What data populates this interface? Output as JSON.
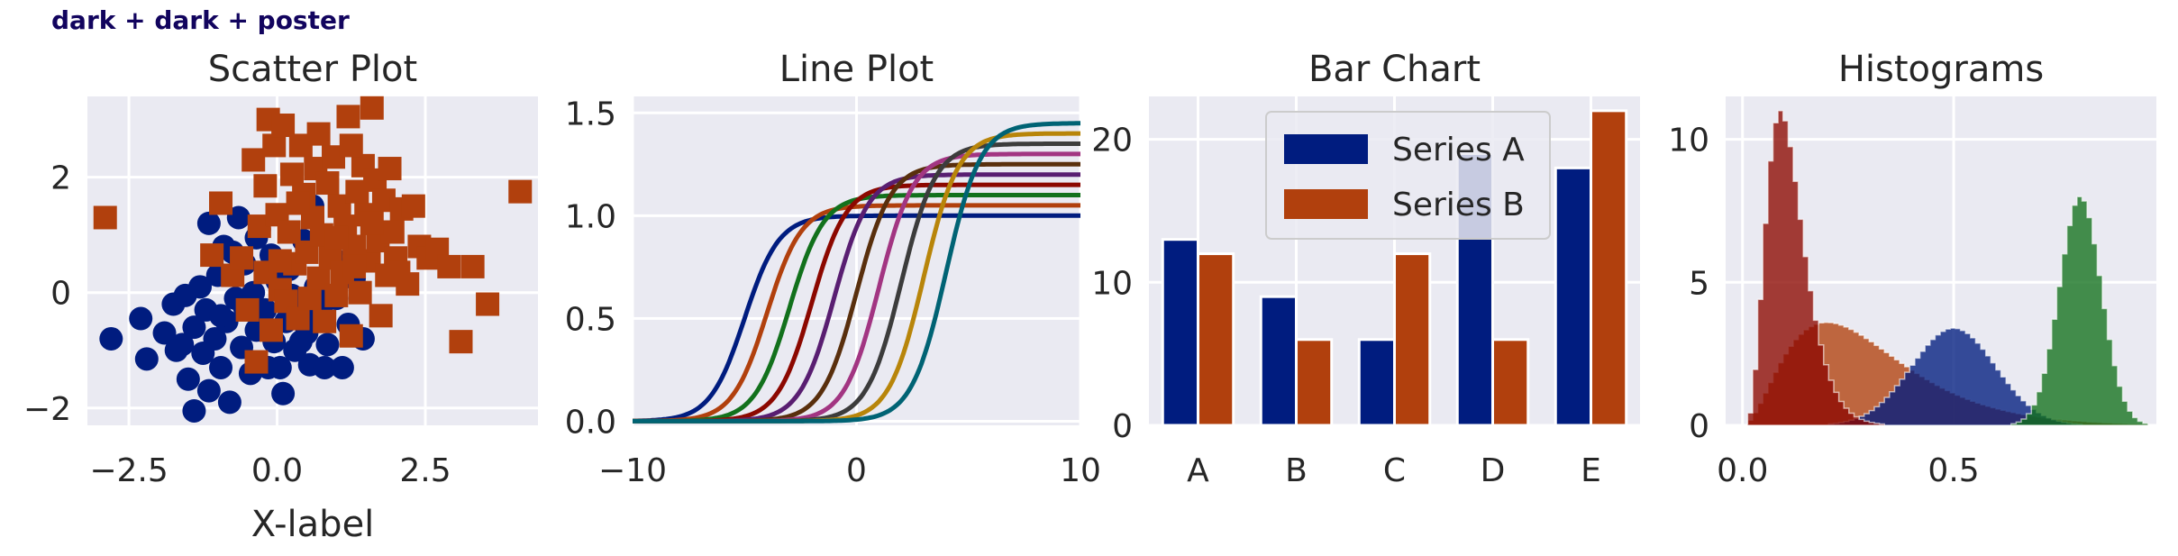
{
  "figure": {
    "suptitle": "dark + dark + poster"
  },
  "colors": {
    "axes_bg": "#eaeaf2",
    "grid": "#ffffff",
    "text": "#262626",
    "dark_palette": [
      "#001c7f",
      "#b1400d",
      "#12711c",
      "#8c0800",
      "#591e71",
      "#592f0d",
      "#a23582",
      "#3c3c3c",
      "#b8850a",
      "#006374"
    ]
  },
  "chart_data": [
    {
      "type": "scatter",
      "title": "Scatter Plot",
      "xlabel": "X-label",
      "ylabel": "",
      "xlim": [
        -3.2,
        4.4
      ],
      "ylim": [
        -2.3,
        3.4
      ],
      "xticks": [
        -2.5,
        0.0,
        2.5
      ],
      "xtick_labels": [
        "−2.5",
        "0.0",
        "2.5"
      ],
      "yticks": [
        -2,
        0,
        2
      ],
      "ytick_labels": [
        "−2",
        "0",
        "2"
      ],
      "series": [
        {
          "marker": "circle",
          "color": "#001c7f",
          "points": [
            [
              -2.8,
              -0.8
            ],
            [
              -2.2,
              -1.15
            ],
            [
              -2.3,
              -0.45
            ],
            [
              -1.9,
              -0.7
            ],
            [
              -1.75,
              -0.2
            ],
            [
              -1.6,
              -0.9
            ],
            [
              -1.55,
              -0.05
            ],
            [
              -1.5,
              -1.5
            ],
            [
              -1.4,
              -0.6
            ],
            [
              -1.4,
              -2.05
            ],
            [
              -1.3,
              0.1
            ],
            [
              -1.25,
              -1.05
            ],
            [
              -1.2,
              -0.3
            ],
            [
              -1.15,
              -1.7
            ],
            [
              -1.05,
              -0.8
            ],
            [
              -1.0,
              0.3
            ],
            [
              -0.95,
              -1.3
            ],
            [
              -0.9,
              0.8
            ],
            [
              -0.85,
              -0.5
            ],
            [
              -0.8,
              -1.9
            ],
            [
              -0.7,
              -0.1
            ],
            [
              -0.65,
              1.3
            ],
            [
              -0.6,
              -0.95
            ],
            [
              -0.55,
              0.5
            ],
            [
              -0.45,
              -1.4
            ],
            [
              -0.4,
              0.0
            ],
            [
              -0.35,
              -0.65
            ],
            [
              -0.3,
              1.1
            ],
            [
              -0.2,
              -0.3
            ],
            [
              -0.15,
              -1.3
            ],
            [
              -0.1,
              0.65
            ],
            [
              -0.05,
              -0.85
            ],
            [
              0.0,
              0.2
            ],
            [
              0.05,
              -1.3
            ],
            [
              0.1,
              -1.75
            ],
            [
              0.15,
              -0.5
            ],
            [
              0.2,
              0.4
            ],
            [
              0.3,
              -1.0
            ],
            [
              0.35,
              -0.2
            ],
            [
              0.45,
              0.9
            ],
            [
              0.5,
              -0.7
            ],
            [
              0.55,
              -1.25
            ],
            [
              0.65,
              0.1
            ],
            [
              0.7,
              -0.4
            ],
            [
              0.8,
              -1.3
            ],
            [
              0.85,
              -0.9
            ],
            [
              0.95,
              0.6
            ],
            [
              1.0,
              -0.1
            ],
            [
              1.1,
              -1.3
            ],
            [
              1.2,
              -0.55
            ],
            [
              1.3,
              0.25
            ],
            [
              1.45,
              -0.8
            ],
            [
              -0.75,
              0.7
            ],
            [
              -1.15,
              1.2
            ],
            [
              -0.35,
              0.95
            ],
            [
              0.6,
              1.5
            ],
            [
              -0.95,
              -0.4
            ],
            [
              -0.25,
              -0.55
            ],
            [
              0.25,
              -0.05
            ],
            [
              -0.55,
              -0.25
            ],
            [
              0.8,
              -0.15
            ],
            [
              -1.7,
              -1.0
            ],
            [
              0.4,
              -0.85
            ]
          ]
        },
        {
          "marker": "square",
          "color": "#b1400d",
          "points": [
            [
              -2.9,
              1.3
            ],
            [
              -1.1,
              0.65
            ],
            [
              -0.95,
              1.55
            ],
            [
              -0.75,
              0.3
            ],
            [
              -0.6,
              0.6
            ],
            [
              -0.5,
              -0.3
            ],
            [
              -0.4,
              2.3
            ],
            [
              -0.35,
              -1.2
            ],
            [
              -0.3,
              1.15
            ],
            [
              -0.2,
              0.35
            ],
            [
              -0.15,
              3.0
            ],
            [
              -0.1,
              -0.65
            ],
            [
              -0.05,
              2.55
            ],
            [
              0.0,
              1.35
            ],
            [
              0.05,
              0.05
            ],
            [
              0.1,
              2.9
            ],
            [
              0.15,
              -0.15
            ],
            [
              0.2,
              1.05
            ],
            [
              0.25,
              2.05
            ],
            [
              0.3,
              0.5
            ],
            [
              0.35,
              -0.45
            ],
            [
              0.4,
              2.55
            ],
            [
              0.45,
              1.7
            ],
            [
              0.5,
              0.7
            ],
            [
              0.55,
              -0.1
            ],
            [
              0.6,
              1.3
            ],
            [
              0.65,
              2.15
            ],
            [
              0.7,
              0.25
            ],
            [
              0.75,
              1.0
            ],
            [
              0.8,
              -0.5
            ],
            [
              0.85,
              1.9
            ],
            [
              0.9,
              0.6
            ],
            [
              0.95,
              2.35
            ],
            [
              1.0,
              -0.05
            ],
            [
              1.05,
              1.5
            ],
            [
              1.1,
              0.35
            ],
            [
              1.15,
              1.15
            ],
            [
              1.2,
              3.05
            ],
            [
              1.25,
              -0.75
            ],
            [
              1.3,
              0.8
            ],
            [
              1.35,
              1.75
            ],
            [
              1.4,
              0.0
            ],
            [
              1.45,
              2.2
            ],
            [
              1.5,
              1.35
            ],
            [
              1.55,
              0.55
            ],
            [
              1.6,
              3.2
            ],
            [
              1.65,
              1.95
            ],
            [
              1.7,
              0.9
            ],
            [
              1.75,
              -0.4
            ],
            [
              1.8,
              1.6
            ],
            [
              1.85,
              0.3
            ],
            [
              1.9,
              2.15
            ],
            [
              1.95,
              1.05
            ],
            [
              2.0,
              0.6
            ],
            [
              2.1,
              1.45
            ],
            [
              2.2,
              0.15
            ],
            [
              2.3,
              1.5
            ],
            [
              2.4,
              0.8
            ],
            [
              2.55,
              0.6
            ],
            [
              2.7,
              0.75
            ],
            [
              2.9,
              0.45
            ],
            [
              3.1,
              -0.85
            ],
            [
              3.3,
              0.45
            ],
            [
              3.55,
              -0.2
            ],
            [
              4.1,
              1.75
            ],
            [
              0.7,
              2.75
            ],
            [
              1.25,
              2.55
            ],
            [
              0.35,
              1.55
            ],
            [
              -0.2,
              1.85
            ],
            [
              1.0,
              0.95
            ],
            [
              1.6,
              1.2
            ],
            [
              2.05,
              0.35
            ],
            [
              0.05,
              0.55
            ],
            [
              1.3,
              0.45
            ]
          ]
        }
      ]
    },
    {
      "type": "line",
      "title": "Line Plot",
      "xlabel": "",
      "ylabel": "",
      "xlim": [
        -10,
        10
      ],
      "ylim": [
        -0.02,
        1.58
      ],
      "xticks": [
        -10,
        0,
        10
      ],
      "xtick_labels": [
        "−10",
        "0",
        "10"
      ],
      "yticks": [
        0.0,
        0.5,
        1.0,
        1.5
      ],
      "ytick_labels": [
        "0.0",
        "0.5",
        "1.0",
        "1.5"
      ],
      "series": [
        {
          "color": "#001c7f",
          "amplitude": 1.0,
          "center": -5
        },
        {
          "color": "#b1400d",
          "amplitude": 1.05,
          "center": -4
        },
        {
          "color": "#12711c",
          "amplitude": 1.1,
          "center": -3
        },
        {
          "color": "#8c0800",
          "amplitude": 1.15,
          "center": -2
        },
        {
          "color": "#591e71",
          "amplitude": 1.2,
          "center": -1
        },
        {
          "color": "#592f0d",
          "amplitude": 1.25,
          "center": 0
        },
        {
          "color": "#a23582",
          "amplitude": 1.3,
          "center": 1
        },
        {
          "color": "#3c3c3c",
          "amplitude": 1.35,
          "center": 2
        },
        {
          "color": "#b8850a",
          "amplitude": 1.4,
          "center": 3
        },
        {
          "color": "#006374",
          "amplitude": 1.45,
          "center": 4
        }
      ]
    },
    {
      "type": "bar",
      "title": "Bar Chart",
      "xlabel": "",
      "ylabel": "",
      "categories": [
        "A",
        "B",
        "C",
        "D",
        "E"
      ],
      "ylim": [
        0,
        23
      ],
      "yticks": [
        0,
        10,
        20
      ],
      "ytick_labels": [
        "0",
        "10",
        "20"
      ],
      "legend_position": "upper-center",
      "series": [
        {
          "name": "Series A",
          "color": "#001c7f",
          "values": [
            13,
            9,
            6,
            19,
            18
          ]
        },
        {
          "name": "Series B",
          "color": "#b1400d",
          "values": [
            12,
            6,
            12,
            6,
            22
          ]
        }
      ]
    },
    {
      "type": "histogram",
      "title": "Histograms",
      "xlabel": "",
      "ylabel": "",
      "xlim": [
        -0.04,
        0.98
      ],
      "ylim": [
        0,
        11.5
      ],
      "xticks": [
        0.0,
        0.5
      ],
      "xtick_labels": [
        "0.0",
        "0.5"
      ],
      "yticks": [
        0,
        5,
        10
      ],
      "ytick_labels": [
        "0",
        "5",
        "10"
      ],
      "series": [
        {
          "color": "#001c7f",
          "shape": "normal",
          "mean": 0.5,
          "sd": 0.1,
          "peak": 3.4
        },
        {
          "color": "#b1400d",
          "shape": "skewed",
          "mode": 0.2,
          "peak": 3.6
        },
        {
          "color": "#12711c",
          "shape": "normal",
          "mean": 0.8,
          "sd": 0.05,
          "peak": 8.0
        },
        {
          "color": "#8c0800",
          "shape": "skewed",
          "mode": 0.09,
          "peak": 11.0
        }
      ]
    }
  ]
}
